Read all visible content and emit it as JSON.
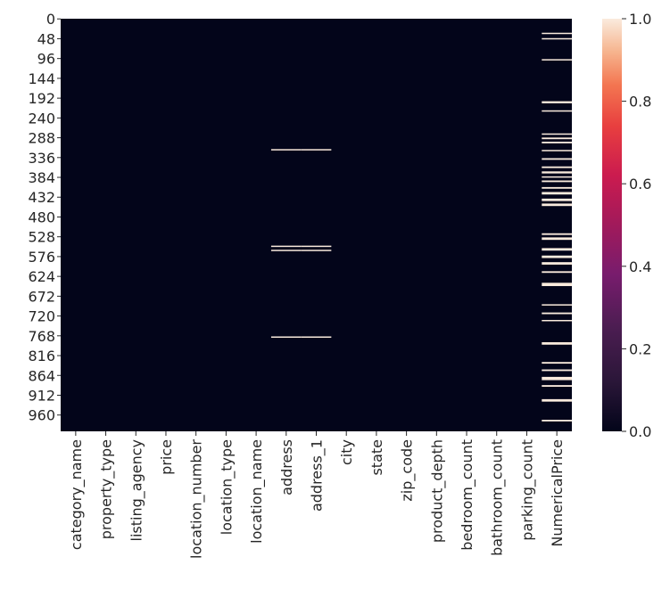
{
  "chart_data": {
    "type": "heatmap",
    "title": "",
    "xlabel": "",
    "ylabel": "",
    "columns": [
      "category_name",
      "property_type",
      "listing_agency",
      "price",
      "location_number",
      "location_type",
      "location_name",
      "address",
      "address_1",
      "city",
      "state",
      "zip_code",
      "product_depth",
      "bedroom_count",
      "bathroom_count",
      "parking_count",
      "NumericalPrice"
    ],
    "row_count": 1000,
    "y_tick_labels": [
      "0",
      "48",
      "96",
      "144",
      "192",
      "240",
      "288",
      "336",
      "384",
      "432",
      "480",
      "528",
      "576",
      "624",
      "672",
      "720",
      "768",
      "816",
      "864",
      "912",
      "960"
    ],
    "value_range": [
      0.0,
      1.0
    ],
    "colorbar": {
      "ticks": [
        "0.0",
        "0.2",
        "0.4",
        "0.6",
        "0.8",
        "1.0"
      ],
      "colormap": "rocket",
      "low_color": "#03051a",
      "mid_color": "#cb1b4f",
      "high_color": "#faebdd"
    },
    "highlighted_cells": [
      {
        "columns": [
          "address",
          "address_1"
        ],
        "rows": [
          [
            316,
            318
          ],
          [
            550,
            552
          ],
          [
            560,
            562
          ],
          [
            770,
            772
          ]
        ],
        "value": 1.0
      },
      {
        "columns": [
          "NumericalPrice"
        ],
        "rows": [
          [
            34,
            37
          ],
          [
            47,
            50
          ],
          [
            98,
            101
          ],
          [
            200,
            205
          ],
          [
            222,
            225
          ],
          [
            278,
            280
          ],
          [
            288,
            292
          ],
          [
            298,
            302
          ],
          [
            318,
            321
          ],
          [
            338,
            342
          ],
          [
            358,
            362
          ],
          [
            370,
            375
          ],
          [
            382,
            385
          ],
          [
            392,
            396
          ],
          [
            408,
            412
          ],
          [
            420,
            426
          ],
          [
            436,
            442
          ],
          [
            448,
            454
          ],
          [
            520,
            524
          ],
          [
            530,
            536
          ],
          [
            556,
            562
          ],
          [
            574,
            580
          ],
          [
            590,
            596
          ],
          [
            612,
            616
          ],
          [
            640,
            648
          ],
          [
            692,
            695
          ],
          [
            712,
            716
          ],
          [
            730,
            733
          ],
          [
            784,
            790
          ],
          [
            832,
            836
          ],
          [
            850,
            854
          ],
          [
            868,
            876
          ],
          [
            888,
            892
          ],
          [
            922,
            928
          ],
          [
            972,
            976
          ]
        ],
        "value": 1.0
      }
    ]
  }
}
